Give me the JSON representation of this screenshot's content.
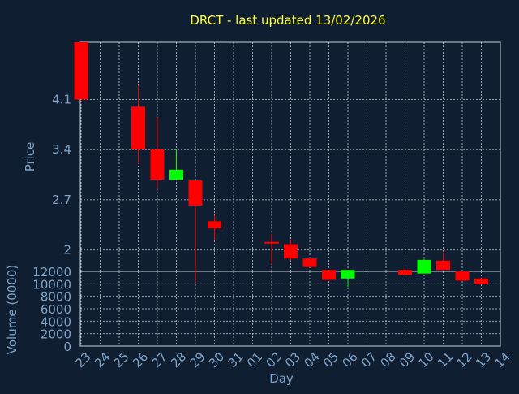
{
  "title": "DRCT - last updated 13/02/2026",
  "colors": {
    "background": "#0f1e30",
    "up": "#00ff00",
    "down": "#ff0000",
    "title": "#ffff33",
    "axis_text": "#7fa3c8",
    "grid": "#c9d3de"
  },
  "chart_data": [
    {
      "type": "candlestick",
      "ylabel": "Price",
      "ylim": [
        1.7,
        4.9
      ],
      "yticks": [
        "4.1",
        "3.4",
        "2.7",
        "2"
      ],
      "grid": true,
      "x": [
        "23",
        "24",
        "25",
        "26",
        "27",
        "28",
        "29",
        "30",
        "31",
        "01",
        "02",
        "03",
        "04",
        "05",
        "06",
        "07",
        "08",
        "09",
        "10",
        "11",
        "12",
        "13",
        "14"
      ],
      "candles": [
        {
          "x": "23",
          "open": 4.9,
          "high": 4.9,
          "low": 4.1,
          "close": 4.1
        },
        {
          "x": "26",
          "open": 4.0,
          "high": 4.3,
          "low": 3.2,
          "close": 3.4
        },
        {
          "x": "27",
          "open": 3.4,
          "high": 3.85,
          "low": 2.85,
          "close": 2.98
        },
        {
          "x": "28",
          "open": 2.98,
          "high": 3.4,
          "low": 2.98,
          "close": 3.12
        },
        {
          "x": "29",
          "open": 2.97,
          "high": 2.97,
          "low": 1.55,
          "close": 2.62
        },
        {
          "x": "30",
          "open": 2.4,
          "high": 2.48,
          "low": 2.14,
          "close": 2.3
        },
        {
          "x": "02",
          "open": 2.1,
          "high": 2.22,
          "low": 1.8,
          "close": 2.1
        },
        {
          "x": "03",
          "open": 2.08,
          "high": 2.15,
          "low": 1.85,
          "close": 1.88
        },
        {
          "x": "04",
          "open": 1.88,
          "high": 1.9,
          "low": 1.76,
          "close": 1.76
        },
        {
          "x": "05",
          "open": 1.72,
          "high": 1.72,
          "low": 1.58,
          "close": 1.58
        },
        {
          "x": "06",
          "open": 1.6,
          "high": 1.72,
          "low": 1.48,
          "close": 1.72
        },
        {
          "x": "09",
          "open": 1.72,
          "high": 1.75,
          "low": 1.65,
          "close": 1.65
        },
        {
          "x": "10",
          "open": 1.67,
          "high": 1.88,
          "low": 1.67,
          "close": 1.86
        },
        {
          "x": "11",
          "open": 1.85,
          "high": 1.98,
          "low": 1.71,
          "close": 1.72
        },
        {
          "x": "12",
          "open": 1.7,
          "high": 1.7,
          "low": 1.57,
          "close": 1.57
        },
        {
          "x": "13",
          "open": 1.6,
          "high": 1.6,
          "low": 1.52,
          "close": 1.52
        }
      ]
    },
    {
      "type": "bar",
      "ylabel": "Volume (0000)",
      "xlabel": "Day",
      "ylim": [
        0,
        12000
      ],
      "yticks": [
        "12000",
        "10000",
        "8000",
        "6000",
        "4000",
        "2000",
        "0"
      ],
      "grid": true,
      "categories": [
        "23",
        "24",
        "25",
        "26",
        "27",
        "28",
        "29",
        "30",
        "31",
        "01",
        "02",
        "03",
        "04",
        "05",
        "06",
        "07",
        "08",
        "09",
        "10",
        "11",
        "12",
        "13",
        "14"
      ],
      "values": [
        0,
        0,
        0,
        0,
        0,
        0,
        0,
        0,
        0,
        0,
        0,
        0,
        0,
        0,
        0,
        0,
        0,
        0,
        0,
        0,
        0,
        0,
        0
      ]
    }
  ]
}
